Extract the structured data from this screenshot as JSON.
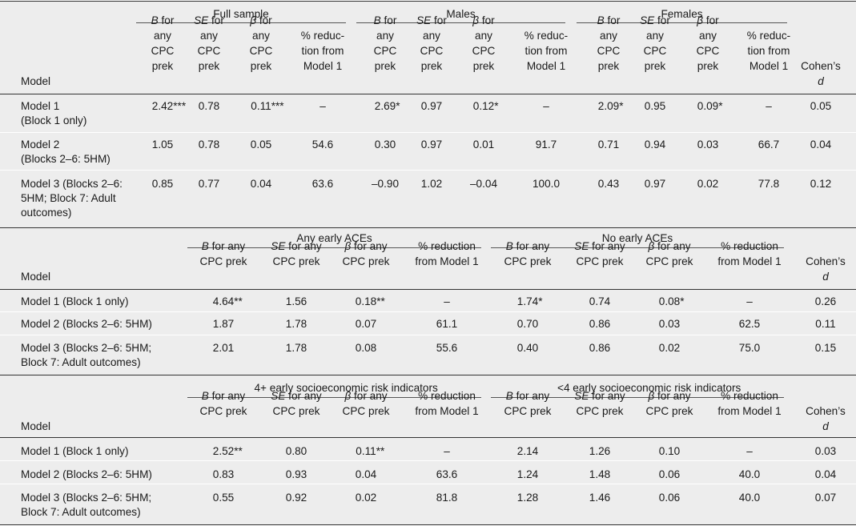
{
  "table1": {
    "groups": [
      "Full sample",
      "Males",
      "Females"
    ],
    "col_headers": [
      [
        "B",
        " for",
        "any",
        "CPC",
        "prek"
      ],
      [
        "SE",
        " for",
        "any",
        "CPC",
        "prek"
      ],
      [
        "β",
        " for",
        "any",
        "CPC",
        "prek"
      ],
      [
        "",
        "% reduc-",
        "tion from",
        "Model 1"
      ]
    ],
    "model_label": "Model",
    "cohen_label": "Cohen’s",
    "cohen_d": "d",
    "rows": [
      {
        "label": [
          "Model 1",
          "(Block 1 only)"
        ],
        "values": [
          "2.42***",
          "0.78",
          "0.11***",
          "–",
          "2.69*",
          "0.97",
          "0.12*",
          "–",
          "2.09*",
          "0.95",
          "0.09*",
          "–",
          "0.05"
        ]
      },
      {
        "label": [
          "Model 2",
          "(Blocks 2–6: 5HM)"
        ],
        "values": [
          "1.05",
          "0.78",
          "0.05",
          "54.6",
          "0.30",
          "0.97",
          "0.01",
          "91.7",
          "0.71",
          "0.94",
          "0.03",
          "66.7",
          "0.04"
        ]
      },
      {
        "label": [
          "Model 3 (Blocks 2–6:",
          "5HM; Block 7: Adult",
          "outcomes)"
        ],
        "values": [
          "0.85",
          "0.77",
          "0.04",
          "63.6",
          "–0.90",
          "1.02",
          "–0.04",
          "100.0",
          "0.43",
          "0.97",
          "0.02",
          "77.8",
          "0.12"
        ]
      }
    ]
  },
  "table2": {
    "groups": [
      "Any early ACEs",
      "No early ACEs"
    ],
    "col_headers": [
      [
        "B",
        " for any",
        "CPC prek"
      ],
      [
        "SE",
        " for any",
        "CPC prek"
      ],
      [
        "β",
        " for any",
        "CPC prek"
      ],
      [
        "",
        "% reduction",
        "from Model 1"
      ]
    ],
    "model_label": "Model",
    "cohen_label": "Cohen’s",
    "cohen_d": "d",
    "rows": [
      {
        "label": [
          "Model 1 (Block 1 only)"
        ],
        "values": [
          "4.64**",
          "1.56",
          "0.18**",
          "–",
          "1.74*",
          "0.74",
          "0.08*",
          "–",
          "0.26"
        ]
      },
      {
        "label": [
          "Model 2 (Blocks 2–6: 5HM)"
        ],
        "values": [
          "1.87",
          "1.78",
          "0.07",
          "61.1",
          "0.70",
          "0.86",
          "0.03",
          "62.5",
          "0.11"
        ]
      },
      {
        "label": [
          "Model 3 (Blocks 2–6: 5HM;",
          "Block 7: Adult outcomes)"
        ],
        "values": [
          "2.01",
          "1.78",
          "0.08",
          "55.6",
          "0.40",
          "0.86",
          "0.02",
          "75.0",
          "0.15"
        ]
      }
    ]
  },
  "table3": {
    "groups": [
      "4+ early socioeconomic risk indicators",
      "<4 early socioeconomic risk indicators"
    ],
    "col_headers": [
      [
        "B",
        " for any",
        "CPC prek"
      ],
      [
        "SE",
        " for any",
        "CPC prek"
      ],
      [
        "β",
        " for any",
        "CPC prek"
      ],
      [
        "",
        "% reduction",
        "from Model 1"
      ]
    ],
    "model_label": "Model",
    "cohen_label": "Cohen’s",
    "cohen_d": "d",
    "rows": [
      {
        "label": [
          "Model 1 (Block 1 only)"
        ],
        "values": [
          "2.52**",
          "0.80",
          "0.11**",
          "–",
          "2.14",
          "1.26",
          "0.10",
          "–",
          "0.03"
        ]
      },
      {
        "label": [
          "Model 2 (Blocks 2–6: 5HM)"
        ],
        "values": [
          "0.83",
          "0.93",
          "0.04",
          "63.6",
          "1.24",
          "1.48",
          "0.06",
          "40.0",
          "0.04"
        ]
      },
      {
        "label": [
          "Model 3 (Blocks 2–6: 5HM;",
          "Block 7: Adult outcomes)"
        ],
        "values": [
          "0.55",
          "0.92",
          "0.02",
          "81.8",
          "1.28",
          "1.46",
          "0.06",
          "40.0",
          "0.07"
        ]
      }
    ]
  }
}
